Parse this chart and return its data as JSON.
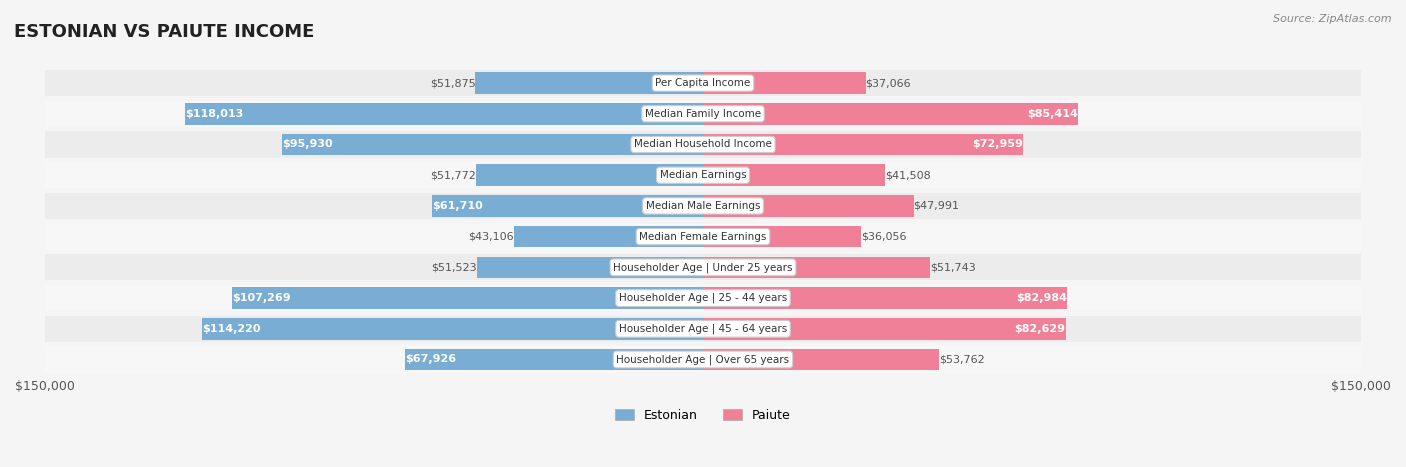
{
  "title": "ESTONIAN VS PAIUTE INCOME",
  "source": "Source: ZipAtlas.com",
  "categories": [
    "Per Capita Income",
    "Median Family Income",
    "Median Household Income",
    "Median Earnings",
    "Median Male Earnings",
    "Median Female Earnings",
    "Householder Age | Under 25 years",
    "Householder Age | 25 - 44 years",
    "Householder Age | 45 - 64 years",
    "Householder Age | Over 65 years"
  ],
  "estonian": [
    51875,
    118013,
    95930,
    51772,
    61710,
    43106,
    51523,
    107269,
    114220,
    67926
  ],
  "paiute": [
    37066,
    85414,
    72959,
    41508,
    47991,
    36056,
    51743,
    82984,
    82629,
    53762
  ],
  "max_val": 150000,
  "estonian_color": "#7aadd4",
  "estonian_dark_color": "#5b8fbf",
  "paiute_color": "#f08098",
  "paiute_dark_color": "#e05070",
  "bg_color": "#f5f5f5",
  "row_bg": "#ffffff",
  "row_alt_bg": "#f0f0f0",
  "label_bg": "#ffffff",
  "label_border": "#cccccc"
}
